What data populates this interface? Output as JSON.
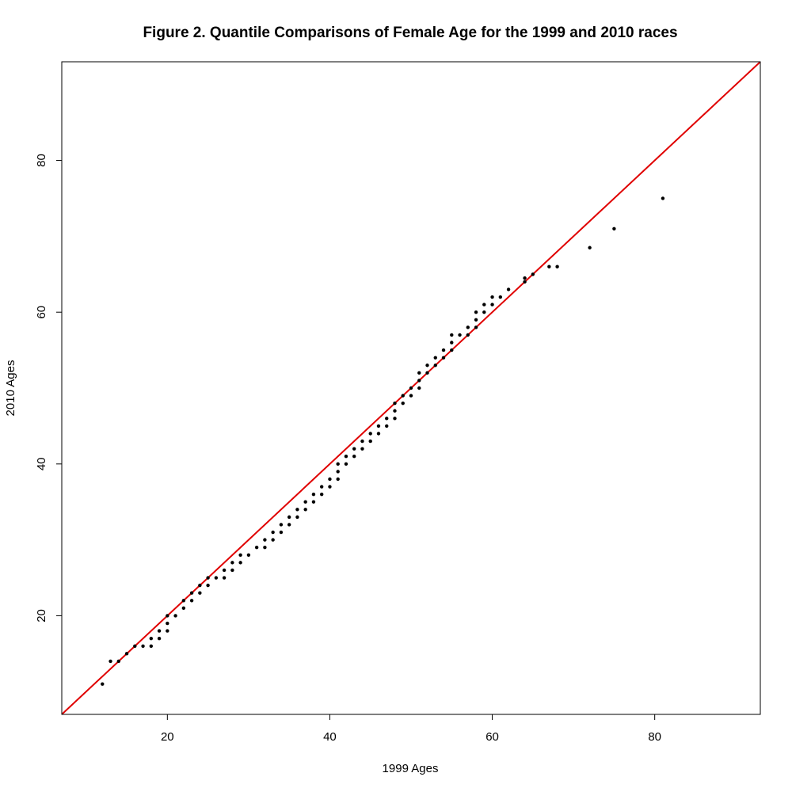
{
  "chart_data": {
    "type": "scatter",
    "title": "Figure 2. Quantile Comparisons of Female Age for the 1999 and 2010 races",
    "xlabel": "1999 Ages",
    "ylabel": "2010 Ages",
    "xlim": [
      7,
      93
    ],
    "ylim": [
      7,
      93
    ],
    "xticks": [
      20,
      40,
      60,
      80
    ],
    "yticks": [
      20,
      40,
      60,
      80
    ],
    "grid": false,
    "reference_line": {
      "type": "identity",
      "color": "#e00000"
    },
    "point_color": "#000000",
    "points": [
      [
        12,
        11
      ],
      [
        13,
        14
      ],
      [
        14,
        14
      ],
      [
        15,
        15
      ],
      [
        16,
        16
      ],
      [
        17,
        16
      ],
      [
        18,
        16
      ],
      [
        18,
        17
      ],
      [
        19,
        17
      ],
      [
        19,
        18
      ],
      [
        20,
        18
      ],
      [
        20,
        19
      ],
      [
        20,
        20
      ],
      [
        21,
        20
      ],
      [
        22,
        21
      ],
      [
        22,
        22
      ],
      [
        23,
        22
      ],
      [
        23,
        23
      ],
      [
        24,
        23
      ],
      [
        24,
        24
      ],
      [
        25,
        24
      ],
      [
        25,
        25
      ],
      [
        26,
        25
      ],
      [
        27,
        25
      ],
      [
        27,
        26
      ],
      [
        28,
        26
      ],
      [
        28,
        27
      ],
      [
        29,
        27
      ],
      [
        29,
        28
      ],
      [
        30,
        28
      ],
      [
        31,
        29
      ],
      [
        32,
        29
      ],
      [
        32,
        30
      ],
      [
        33,
        30
      ],
      [
        33,
        31
      ],
      [
        34,
        31
      ],
      [
        34,
        32
      ],
      [
        35,
        32
      ],
      [
        35,
        33
      ],
      [
        36,
        33
      ],
      [
        36,
        34
      ],
      [
        37,
        34
      ],
      [
        37,
        35
      ],
      [
        38,
        35
      ],
      [
        38,
        36
      ],
      [
        39,
        36
      ],
      [
        39,
        37
      ],
      [
        40,
        37
      ],
      [
        40,
        38
      ],
      [
        41,
        38
      ],
      [
        41,
        39
      ],
      [
        41,
        40
      ],
      [
        42,
        40
      ],
      [
        42,
        41
      ],
      [
        43,
        41
      ],
      [
        43,
        42
      ],
      [
        44,
        42
      ],
      [
        44,
        43
      ],
      [
        45,
        43
      ],
      [
        45,
        44
      ],
      [
        46,
        44
      ],
      [
        46,
        45
      ],
      [
        47,
        45
      ],
      [
        47,
        46
      ],
      [
        48,
        46
      ],
      [
        48,
        47
      ],
      [
        48,
        48
      ],
      [
        49,
        48
      ],
      [
        49,
        49
      ],
      [
        50,
        49
      ],
      [
        50,
        50
      ],
      [
        51,
        50
      ],
      [
        51,
        51
      ],
      [
        51,
        52
      ],
      [
        52,
        52
      ],
      [
        52,
        53
      ],
      [
        53,
        53
      ],
      [
        53,
        54
      ],
      [
        54,
        54
      ],
      [
        54,
        55
      ],
      [
        55,
        55
      ],
      [
        55,
        56
      ],
      [
        55,
        57
      ],
      [
        56,
        57
      ],
      [
        57,
        57
      ],
      [
        57,
        58
      ],
      [
        58,
        58
      ],
      [
        58,
        59
      ],
      [
        58,
        60
      ],
      [
        59,
        60
      ],
      [
        59,
        61
      ],
      [
        60,
        61
      ],
      [
        60,
        62
      ],
      [
        61,
        62
      ],
      [
        62,
        63
      ],
      [
        64,
        64
      ],
      [
        64,
        64.5
      ],
      [
        65,
        65
      ],
      [
        67,
        66
      ],
      [
        68,
        66
      ],
      [
        72,
        68.5
      ],
      [
        75,
        71
      ],
      [
        81,
        75
      ]
    ]
  }
}
